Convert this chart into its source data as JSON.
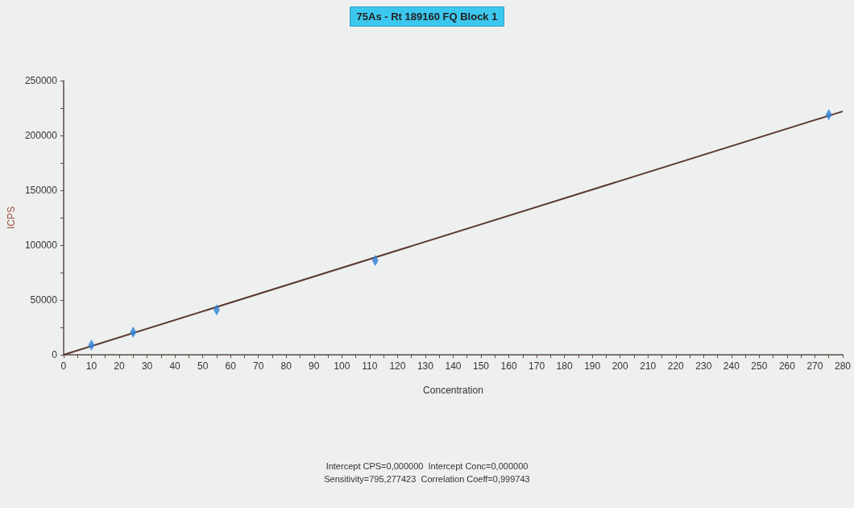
{
  "chart_data": {
    "type": "scatter",
    "title": "75As - Rt 189160 FQ Block 1",
    "xlabel": "Concentration",
    "ylabel": "ICPS",
    "annotations": [
      "Intercept CPS=0,000000  Intercept Conc=0,000000",
      "Sensitivity=795,277423  Correlation Coeff=0,999743"
    ],
    "xlim": [
      0,
      280
    ],
    "xticks": [
      0,
      {
        "value": 5,
        "label": null
      },
      10,
      {
        "value": 15,
        "label": null
      },
      20,
      {
        "value": 25,
        "label": null
      },
      30,
      {
        "value": 35,
        "label": null
      },
      40,
      {
        "value": 45,
        "label": null
      },
      50,
      {
        "value": 55,
        "label": null
      },
      60,
      {
        "value": 65,
        "label": null
      },
      70,
      {
        "value": 75,
        "label": null
      },
      80,
      {
        "value": 85,
        "label": null
      },
      90,
      {
        "value": 95,
        "label": null
      },
      100,
      {
        "value": 105,
        "label": null
      },
      110,
      {
        "value": 115,
        "label": null
      },
      120,
      {
        "value": 125,
        "label": null
      },
      130,
      {
        "value": 135,
        "label": null
      },
      140,
      {
        "value": 145,
        "label": null
      },
      150,
      {
        "value": 155,
        "label": null
      },
      160,
      {
        "value": 165,
        "label": null
      },
      170,
      {
        "value": 175,
        "label": null
      },
      180,
      {
        "value": 185,
        "label": null
      },
      190,
      {
        "value": 195,
        "label": null
      },
      200,
      {
        "value": 205,
        "label": null
      },
      210,
      {
        "value": 215,
        "label": null
      },
      220,
      {
        "value": 225,
        "label": null
      },
      230,
      {
        "value": 235,
        "label": null
      },
      240,
      {
        "value": 245,
        "label": null
      },
      250,
      {
        "value": 255,
        "label": null
      },
      260,
      {
        "value": 265,
        "label": null
      },
      270,
      {
        "value": 275,
        "label": null
      },
      280
    ],
    "ylim": [
      0,
      250000
    ],
    "yticks": [
      0,
      {
        "value": 25000,
        "label": null
      },
      50000,
      {
        "value": 75000,
        "label": null
      },
      100000,
      {
        "value": 125000,
        "label": null
      },
      150000,
      {
        "value": 175000,
        "label": null
      },
      200000,
      {
        "value": 225000,
        "label": null
      },
      250000
    ],
    "grid": false,
    "marker": "diamond",
    "series": [
      {
        "type": "line",
        "color": "#5a3a30",
        "x": [
          0,
          280
        ],
        "values": [
          0,
          222000
        ],
        "marker": "none"
      },
      {
        "color": "#2a7fd8",
        "x": [
          10,
          25,
          55,
          112,
          275
        ],
        "values": [
          8800,
          20500,
          41000,
          86000,
          219000
        ]
      }
    ]
  }
}
